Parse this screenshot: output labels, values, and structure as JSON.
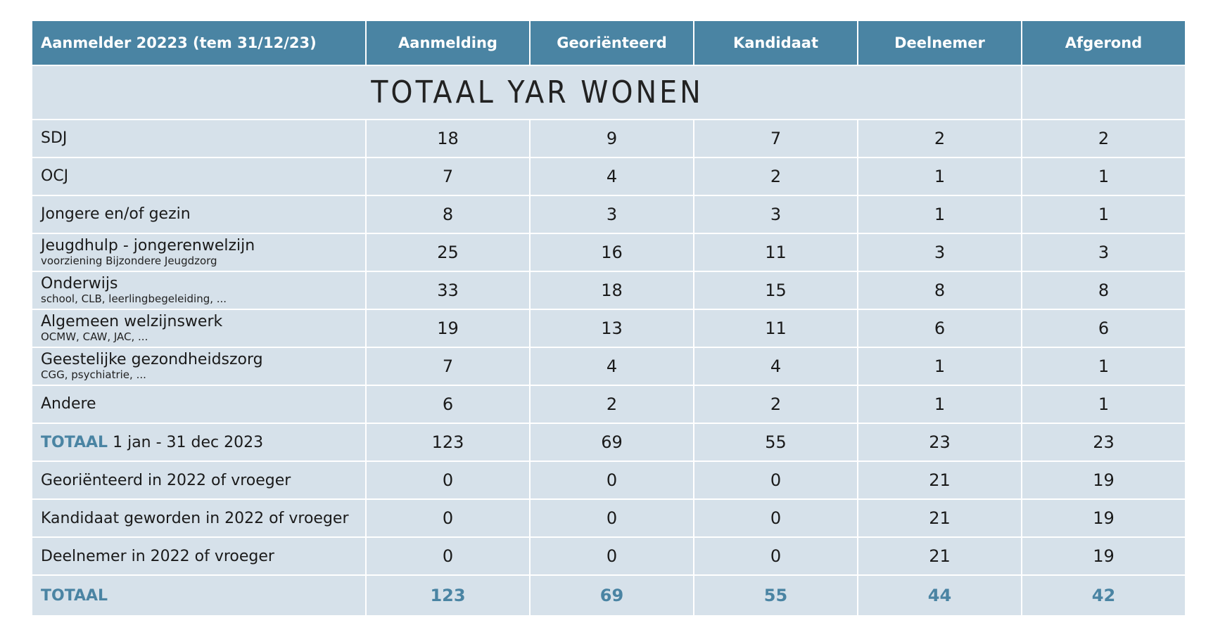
{
  "title": "TOTAAL YAR WONEN",
  "header": {
    "col0": "Aanmelder 20223 (tem 31/12/23)",
    "columns": [
      "Aanmelding",
      "Georiënteerd",
      "Kandidaat",
      "Deelnemer",
      "Afgerond"
    ]
  },
  "rows": [
    {
      "label": "SDJ",
      "sub": "",
      "values": [
        "18",
        "9",
        "7",
        "2",
        "2"
      ]
    },
    {
      "label": "OCJ",
      "sub": "",
      "values": [
        "7",
        "4",
        "2",
        "1",
        "1"
      ]
    },
    {
      "label": "Jongere en/of gezin",
      "sub": "",
      "values": [
        "8",
        "3",
        "3",
        "1",
        "1"
      ]
    },
    {
      "label": "Jeugdhulp - jongerenwelzijn",
      "sub": "voorziening Bijzondere Jeugdzorg",
      "values": [
        "25",
        "16",
        "11",
        "3",
        "3"
      ]
    },
    {
      "label": "Onderwijs",
      "sub": "school, CLB, leerlingbegeleiding, ...",
      "values": [
        "33",
        "18",
        "15",
        "8",
        "8"
      ]
    },
    {
      "label": "Algemeen welzijnswerk",
      "sub": "OCMW, CAW, JAC, ...",
      "values": [
        "19",
        "13",
        "11",
        "6",
        "6"
      ]
    },
    {
      "label": "Geestelijke gezondheidszorg",
      "sub": "CGG, psychiatrie, ...",
      "values": [
        "7",
        "4",
        "4",
        "1",
        "1"
      ]
    },
    {
      "label": "Andere",
      "sub": "",
      "values": [
        "6",
        "2",
        "2",
        "1",
        "1"
      ]
    }
  ],
  "subtotal": {
    "label_bold": "TOTAAL",
    "label_rest": " 1 jan - 31 dec 2023",
    "values": [
      "123",
      "69",
      "55",
      "23",
      "23"
    ]
  },
  "prior_rows": [
    {
      "label": "Georiënteerd in 2022 of vroeger",
      "values": [
        "0",
        "0",
        "0",
        "21",
        "19"
      ]
    },
    {
      "label": "Kandidaat geworden in 2022 of vroeger",
      "values": [
        "0",
        "0",
        "0",
        "21",
        "19"
      ]
    },
    {
      "label": "Deelnemer in 2022 of vroeger",
      "values": [
        "0",
        "0",
        "0",
        "21",
        "19"
      ]
    }
  ],
  "total": {
    "label": "TOTAAL",
    "values": [
      "123",
      "69",
      "55",
      "44",
      "42"
    ]
  }
}
